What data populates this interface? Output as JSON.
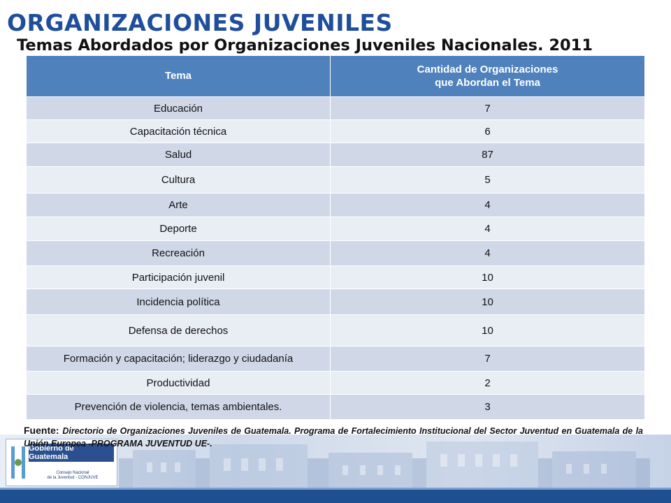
{
  "slide": {
    "title": "ORGANIZACIONES JUVENILES",
    "subtitle": "Temas Abordados por Organizaciones Juveniles Nacionales. 2011"
  },
  "table": {
    "headers": [
      "Tema",
      "Cantidad de Organizaciones",
      "que Abordan el Tema"
    ],
    "rows": [
      {
        "tema": "Educación",
        "cantidad": "7"
      },
      {
        "tema": "Capacitación técnica",
        "cantidad": "6"
      },
      {
        "tema": "Salud",
        "cantidad": "87"
      },
      {
        "tema": "Cultura",
        "cantidad": "5"
      },
      {
        "tema": "Arte",
        "cantidad": "4"
      },
      {
        "tema": "Deporte",
        "cantidad": "4"
      },
      {
        "tema": "Recreación",
        "cantidad": "4"
      },
      {
        "tema": "Participación juvenil",
        "cantidad": "10"
      },
      {
        "tema": "Incidencia política",
        "cantidad": "10"
      },
      {
        "tema": "Defensa de derechos",
        "cantidad": "10"
      },
      {
        "tema": "Formación y capacitación; liderazgo y ciudadanía",
        "cantidad": "7"
      },
      {
        "tema": "Productividad",
        "cantidad": "2"
      },
      {
        "tema": "Prevención de violencia, temas ambientales.",
        "cantidad": "3"
      }
    ]
  },
  "source": {
    "label": "Fuente:",
    "text": "Directorio de Organizaciones Juveniles de Guatemala. Programa de Fortalecimiento Institucional del Sector Juventud en Guatemala de la Unión Europea -PROGRAMA JUVENTUD UE-."
  },
  "footer": {
    "gov_label": "Gobierno de Guatemala",
    "conjuve_line1": "Consejo Nacional",
    "conjuve_line2": "de la Juventud - CONJUVE"
  },
  "colors": {
    "title": "#1f4e9c",
    "header_bg": "#4f81bd",
    "row_odd": "#d0d8e8",
    "row_even": "#e9edf4",
    "bottom_stripe": "#1d4f91"
  }
}
